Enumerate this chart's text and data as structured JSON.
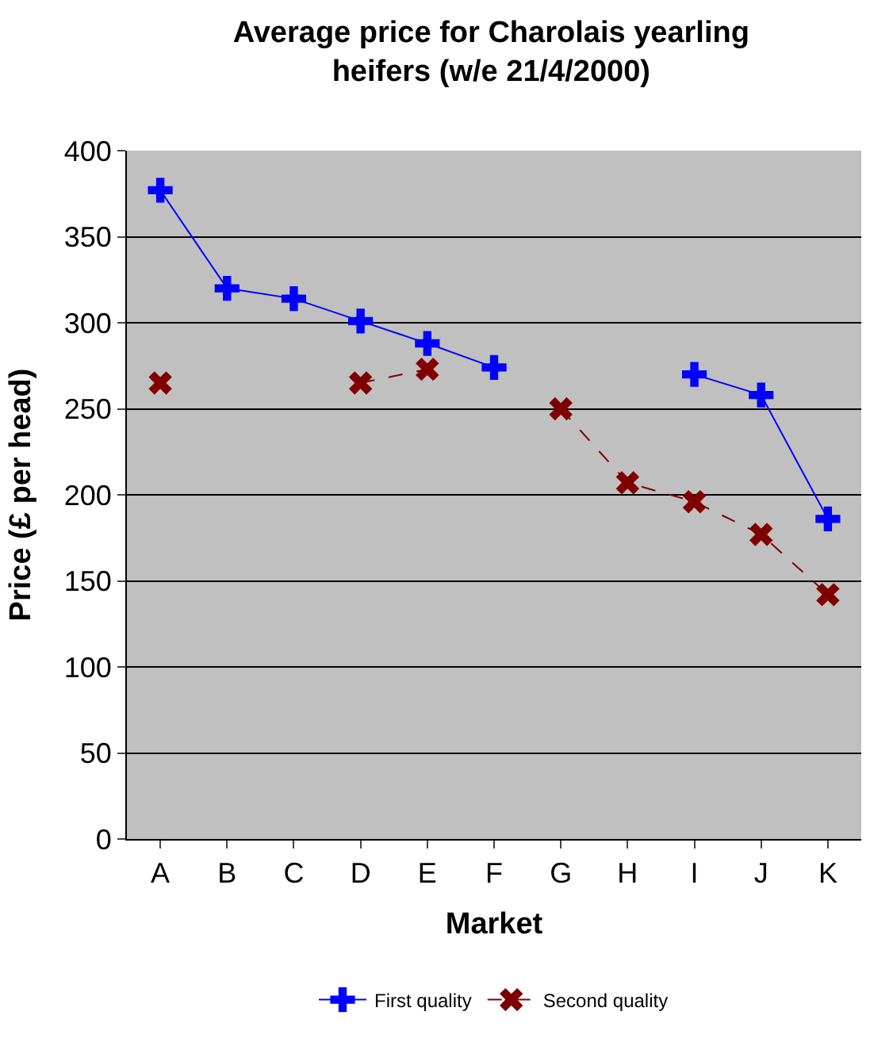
{
  "chart_data": {
    "type": "line",
    "title": "Average price for Charolais yearling heifers (w/e 21/4/2000)",
    "xlabel": "Market",
    "ylabel": "Price (£ per head)",
    "categories": [
      "A",
      "B",
      "C",
      "D",
      "E",
      "F",
      "G",
      "H",
      "I",
      "J",
      "K"
    ],
    "series": [
      {
        "name": "First quality",
        "color": "#0000ff",
        "marker": "cross",
        "line_style": "solid",
        "values": [
          377,
          320,
          314,
          301,
          288,
          274,
          null,
          null,
          270,
          258,
          186
        ]
      },
      {
        "name": "Second quality",
        "color": "#800000",
        "marker": "x",
        "line_style": "dashed",
        "values": [
          265,
          null,
          null,
          265,
          273,
          null,
          250,
          207,
          196,
          177,
          142
        ]
      }
    ],
    "ylim": [
      0,
      400
    ],
    "yticks": [
      0,
      50,
      100,
      150,
      200,
      250,
      300,
      350,
      400
    ],
    "grid": "y",
    "legend": "bottom"
  }
}
